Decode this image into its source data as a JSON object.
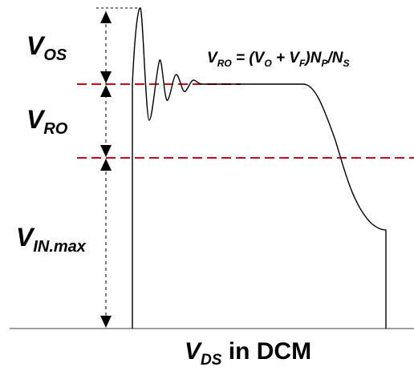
{
  "labels": {
    "v_os": {
      "main": "V",
      "sub": "OS"
    },
    "v_ro": {
      "main": "V",
      "sub": "RO"
    },
    "v_in_max": {
      "main": "V",
      "sub": "IN.max"
    }
  },
  "formula": {
    "v": "V",
    "ro_sub": "RO",
    "eq_open": " = (",
    "vo": "V",
    "o_sub": "O",
    "plus": " + ",
    "vf": "V",
    "f_sub": "F",
    "close": ")",
    "n": "N",
    "p_sub": "P",
    "slash": "/",
    "n2": "N",
    "s_sub": "S"
  },
  "caption": {
    "v": "V",
    "sub": "DS",
    "rest": " in DCM"
  },
  "colors": {
    "waveform": "#000000",
    "dashed_ref": "#d9001b",
    "baseline": "#7f7f7f",
    "guide": "#000000"
  }
}
